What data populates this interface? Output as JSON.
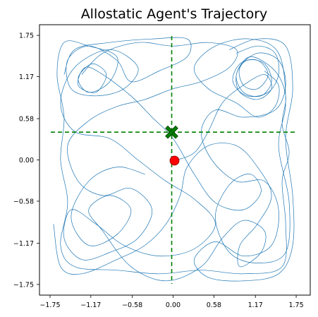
{
  "chart_data": {
    "type": "line",
    "title": "Allostatic Agent's Trajectory",
    "xlim": [
      -1.9,
      1.95
    ],
    "ylim": [
      -1.9,
      1.9
    ],
    "x_ticks": [
      -1.75,
      -1.17,
      -0.58,
      0.0,
      0.58,
      1.17,
      1.75
    ],
    "x_tick_labels": [
      "−1.75",
      "−1.17",
      "−0.58",
      "0.00",
      "0.58",
      "1.17",
      "1.75"
    ],
    "y_ticks": [
      1.75,
      1.17,
      0.58,
      0.0,
      -0.58,
      -1.17,
      -1.75
    ],
    "y_tick_labels": [
      "1.75",
      "1.17",
      "0.58",
      "0.00",
      "−0.58",
      "−1.17",
      "−1.75"
    ],
    "grid": false,
    "colors": {
      "trajectory": "#1f77b4",
      "reference": "#008000",
      "agent": "#ff0000"
    },
    "crosshair": {
      "x": -0.02,
      "y": 0.39,
      "style": "dashed",
      "color": "#008000"
    },
    "markers": [
      {
        "kind": "target",
        "shape": "x",
        "x": -0.02,
        "y": 0.39,
        "color": "#008000"
      },
      {
        "kind": "start",
        "shape": "circle",
        "x": 0.02,
        "y": -0.01,
        "color": "#ff0000"
      }
    ],
    "series": [
      {
        "values": [
          [
            0.02,
            -0.01
          ],
          [
            0.3,
            0.1
          ],
          [
            0.5,
            0.4
          ],
          [
            0.7,
            0.8
          ],
          [
            1.0,
            1.05
          ],
          [
            1.3,
            1.2
          ],
          [
            1.4,
            1.0
          ],
          [
            1.2,
            0.85
          ],
          [
            0.95,
            0.95
          ],
          [
            0.9,
            1.2
          ],
          [
            1.05,
            1.4
          ],
          [
            1.3,
            1.35
          ],
          [
            1.4,
            1.1
          ],
          [
            1.25,
            0.9
          ],
          [
            1.0,
            0.95
          ],
          [
            0.9,
            1.2
          ],
          [
            1.1,
            1.45
          ],
          [
            1.45,
            1.25
          ],
          [
            1.6,
            0.9
          ],
          [
            1.55,
            0.5
          ],
          [
            1.65,
            0.1
          ],
          [
            1.55,
            -0.3
          ],
          [
            1.6,
            -0.9
          ],
          [
            1.55,
            -1.5
          ],
          [
            1.0,
            -1.6
          ],
          [
            0.4,
            -1.55
          ],
          [
            -0.2,
            -1.6
          ],
          [
            -0.8,
            -1.55
          ],
          [
            -1.4,
            -1.5
          ],
          [
            -1.6,
            -1.2
          ],
          [
            -1.5,
            -0.6
          ],
          [
            -1.6,
            0.0
          ],
          [
            -1.55,
            0.6
          ],
          [
            -1.65,
            1.2
          ],
          [
            -1.55,
            1.65
          ],
          [
            -1.2,
            1.6
          ],
          [
            -0.8,
            1.45
          ],
          [
            -0.9,
            1.1
          ],
          [
            -1.2,
            0.95
          ],
          [
            -1.35,
            1.15
          ],
          [
            -1.15,
            1.35
          ],
          [
            -0.95,
            1.2
          ],
          [
            -1.1,
            0.95
          ],
          [
            -1.35,
            1.05
          ],
          [
            -1.25,
            1.3
          ],
          [
            -1.0,
            1.2
          ],
          [
            -0.6,
            0.9
          ],
          [
            -0.3,
            0.6
          ],
          [
            0.0,
            0.3
          ],
          [
            0.3,
            -0.2
          ],
          [
            0.6,
            -0.6
          ],
          [
            1.0,
            -0.7
          ],
          [
            1.25,
            -0.45
          ],
          [
            1.1,
            -0.2
          ],
          [
            0.8,
            -0.35
          ],
          [
            0.6,
            -0.8
          ],
          [
            0.8,
            -1.3
          ],
          [
            1.2,
            -1.45
          ],
          [
            1.6,
            -1.3
          ],
          [
            1.65,
            -0.6
          ],
          [
            1.5,
            0.2
          ],
          [
            1.6,
            0.8
          ],
          [
            1.5,
            1.5
          ],
          [
            1.1,
            1.7
          ],
          [
            0.6,
            1.6
          ],
          [
            0.3,
            1.3
          ],
          [
            0.5,
            1.0
          ],
          [
            0.9,
            0.8
          ],
          [
            1.2,
            0.6
          ],
          [
            1.45,
            0.75
          ],
          [
            1.5,
            1.05
          ],
          [
            1.3,
            1.25
          ]
        ]
      },
      {
        "values": [
          [
            -1.3,
            1.2
          ],
          [
            -1.0,
            1.5
          ],
          [
            -0.5,
            1.65
          ],
          [
            0.0,
            1.6
          ],
          [
            0.5,
            1.65
          ],
          [
            0.9,
            1.55
          ],
          [
            0.8,
            1.3
          ],
          [
            0.4,
            1.1
          ],
          [
            0.0,
            1.0
          ],
          [
            -0.4,
            0.85
          ],
          [
            -0.8,
            0.75
          ],
          [
            -1.2,
            0.55
          ],
          [
            -1.5,
            0.2
          ],
          [
            -1.35,
            -0.3
          ],
          [
            -1.0,
            -0.5
          ],
          [
            -0.6,
            -0.4
          ],
          [
            -0.3,
            -0.7
          ],
          [
            -0.5,
            -1.1
          ],
          [
            -0.9,
            -1.3
          ],
          [
            -1.3,
            -1.4
          ],
          [
            -1.55,
            -1.1
          ],
          [
            -1.45,
            -0.7
          ],
          [
            -1.1,
            -0.9
          ],
          [
            -0.7,
            -1.2
          ],
          [
            -0.2,
            -1.35
          ],
          [
            0.3,
            -1.25
          ],
          [
            0.6,
            -0.9
          ],
          [
            0.3,
            -0.55
          ],
          [
            -0.1,
            -0.3
          ],
          [
            -0.5,
            0.0
          ],
          [
            -0.9,
            0.3
          ],
          [
            -1.4,
            0.4
          ],
          [
            -1.6,
            0.8
          ],
          [
            -1.4,
            1.3
          ],
          [
            -0.9,
            1.55
          ],
          [
            -0.5,
            1.3
          ],
          [
            -0.7,
            1.0
          ],
          [
            -1.1,
            0.9
          ],
          [
            -1.45,
            1.0
          ],
          [
            -1.5,
            1.4
          ],
          [
            -1.2,
            1.6
          ],
          [
            -0.8,
            1.4
          ],
          [
            -0.6,
            1.1
          ],
          [
            -0.2,
            1.25
          ],
          [
            0.2,
            1.45
          ],
          [
            0.2,
            1.7
          ],
          [
            -0.3,
            1.7
          ],
          [
            -0.9,
            1.65
          ],
          [
            -1.4,
            1.55
          ],
          [
            -1.55,
            1.2
          ]
        ]
      },
      {
        "values": [
          [
            0.9,
            1.5
          ],
          [
            1.2,
            1.6
          ],
          [
            1.45,
            1.5
          ],
          [
            1.5,
            1.2
          ],
          [
            1.35,
            0.95
          ],
          [
            1.05,
            0.9
          ],
          [
            0.85,
            1.1
          ],
          [
            0.95,
            1.35
          ],
          [
            1.2,
            1.4
          ],
          [
            1.35,
            1.2
          ],
          [
            1.2,
            1.0
          ],
          [
            1.0,
            1.05
          ],
          [
            0.95,
            1.3
          ],
          [
            1.2,
            1.5
          ],
          [
            1.5,
            1.4
          ],
          [
            1.6,
            1.05
          ],
          [
            1.45,
            0.7
          ],
          [
            1.0,
            0.6
          ],
          [
            0.6,
            0.7
          ],
          [
            0.4,
            0.4
          ],
          [
            0.55,
            0.0
          ],
          [
            0.9,
            -0.3
          ],
          [
            1.3,
            -0.3
          ],
          [
            1.5,
            -0.7
          ],
          [
            1.4,
            -1.2
          ],
          [
            1.0,
            -1.35
          ],
          [
            0.6,
            -1.15
          ],
          [
            0.3,
            -1.4
          ],
          [
            0.5,
            -1.65
          ],
          [
            1.0,
            -1.7
          ],
          [
            1.5,
            -1.6
          ],
          [
            1.7,
            -1.2
          ],
          [
            1.7,
            -0.5
          ],
          [
            1.6,
            0.3
          ],
          [
            1.7,
            1.0
          ],
          [
            1.6,
            1.6
          ],
          [
            1.2,
            1.7
          ],
          [
            0.8,
            1.55
          ]
        ]
      },
      {
        "values": [
          [
            -0.4,
            -0.2
          ],
          [
            -0.8,
            -0.1
          ],
          [
            -1.2,
            -0.3
          ],
          [
            -1.45,
            -0.8
          ],
          [
            -1.2,
            -1.2
          ],
          [
            -0.8,
            -1.05
          ],
          [
            -0.6,
            -0.7
          ],
          [
            -0.9,
            -0.5
          ],
          [
            -1.2,
            -0.7
          ],
          [
            -1.0,
            -1.0
          ],
          [
            -0.6,
            -1.5
          ],
          [
            -0.1,
            -1.7
          ],
          [
            0.4,
            -1.5
          ],
          [
            0.7,
            -1.1
          ],
          [
            1.0,
            -0.85
          ],
          [
            1.3,
            -1.0
          ],
          [
            1.25,
            -1.3
          ],
          [
            0.95,
            -1.5
          ],
          [
            0.95,
            -1.2
          ],
          [
            1.2,
            -0.9
          ],
          [
            1.4,
            -0.5
          ],
          [
            1.2,
            -0.1
          ],
          [
            0.9,
            0.2
          ],
          [
            0.5,
            0.2
          ],
          [
            0.2,
            -0.1
          ],
          [
            0.1,
            -0.5
          ],
          [
            -0.1,
            -0.9
          ],
          [
            -0.4,
            -1.2
          ],
          [
            -0.8,
            -1.4
          ],
          [
            -1.3,
            -1.6
          ],
          [
            -1.6,
            -1.5
          ],
          [
            -1.7,
            -0.9
          ]
        ]
      }
    ]
  }
}
